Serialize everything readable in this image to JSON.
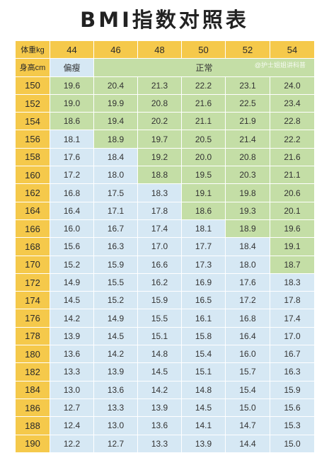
{
  "title": "BMI指数对照表",
  "header": {
    "weight_label": "体重kg",
    "height_label": "身高cm",
    "weights": [
      "44",
      "46",
      "48",
      "50",
      "52",
      "54"
    ],
    "underweight_label": "偏瘦",
    "normal_label": "正常"
  },
  "watermark": "@护士姐姐讲科普",
  "colors": {
    "header": "#f5c94b",
    "underweight": "#d6e8f4",
    "normal": "#c4dea6"
  },
  "rows": [
    {
      "h": "150",
      "v": [
        "19.6",
        "20.4",
        "21.3",
        "22.2",
        "23.1",
        "24.0"
      ],
      "c": "NNNNNN"
    },
    {
      "h": "152",
      "v": [
        "19.0",
        "19.9",
        "20.8",
        "21.6",
        "22.5",
        "23.4"
      ],
      "c": "NNNNNN"
    },
    {
      "h": "154",
      "v": [
        "18.6",
        "19.4",
        "20.2",
        "21.1",
        "21.9",
        "22.8"
      ],
      "c": "NNNNNN"
    },
    {
      "h": "156",
      "v": [
        "18.1",
        "18.9",
        "19.7",
        "20.5",
        "21.4",
        "22.2"
      ],
      "c": "UNNNNN"
    },
    {
      "h": "158",
      "v": [
        "17.6",
        "18.4",
        "19.2",
        "20.0",
        "20.8",
        "21.6"
      ],
      "c": "UUNNNN"
    },
    {
      "h": "160",
      "v": [
        "17.2",
        "18.0",
        "18.8",
        "19.5",
        "20.3",
        "21.1"
      ],
      "c": "UUNNNN"
    },
    {
      "h": "162",
      "v": [
        "16.8",
        "17.5",
        "18.3",
        "19.1",
        "19.8",
        "20.6"
      ],
      "c": "UUUNNN"
    },
    {
      "h": "164",
      "v": [
        "16.4",
        "17.1",
        "17.8",
        "18.6",
        "19.3",
        "20.1"
      ],
      "c": "UUUNNN"
    },
    {
      "h": "166",
      "v": [
        "16.0",
        "16.7",
        "17.4",
        "18.1",
        "18.9",
        "19.6"
      ],
      "c": "UUUUNN"
    },
    {
      "h": "168",
      "v": [
        "15.6",
        "16.3",
        "17.0",
        "17.7",
        "18.4",
        "19.1"
      ],
      "c": "UUUUUN"
    },
    {
      "h": "170",
      "v": [
        "15.2",
        "15.9",
        "16.6",
        "17.3",
        "18.0",
        "18.7"
      ],
      "c": "UUUUUN"
    },
    {
      "h": "172",
      "v": [
        "14.9",
        "15.5",
        "16.2",
        "16.9",
        "17.6",
        "18.3"
      ],
      "c": "UUUUUU"
    },
    {
      "h": "174",
      "v": [
        "14.5",
        "15.2",
        "15.9",
        "16.5",
        "17.2",
        "17.8"
      ],
      "c": "UUUUUU"
    },
    {
      "h": "176",
      "v": [
        "14.2",
        "14.9",
        "15.5",
        "16.1",
        "16.8",
        "17.4"
      ],
      "c": "UUUUUU"
    },
    {
      "h": "178",
      "v": [
        "13.9",
        "14.5",
        "15.1",
        "15.8",
        "16.4",
        "17.0"
      ],
      "c": "UUUUUU"
    },
    {
      "h": "180",
      "v": [
        "13.6",
        "14.2",
        "14.8",
        "15.4",
        "16.0",
        "16.7"
      ],
      "c": "UUUUUU"
    },
    {
      "h": "182",
      "v": [
        "13.3",
        "13.9",
        "14.5",
        "15.1",
        "15.7",
        "16.3"
      ],
      "c": "UUUUUU"
    },
    {
      "h": "184",
      "v": [
        "13.0",
        "13.6",
        "14.2",
        "14.8",
        "15.4",
        "15.9"
      ],
      "c": "UUUUUU"
    },
    {
      "h": "186",
      "v": [
        "12.7",
        "13.3",
        "13.9",
        "14.5",
        "15.0",
        "15.6"
      ],
      "c": "UUUUUU"
    },
    {
      "h": "188",
      "v": [
        "12.4",
        "13.0",
        "13.6",
        "14.1",
        "14.7",
        "15.3"
      ],
      "c": "UUUUUU"
    },
    {
      "h": "190",
      "v": [
        "12.2",
        "12.7",
        "13.3",
        "13.9",
        "14.4",
        "15.0"
      ],
      "c": "UUUUUU"
    }
  ]
}
